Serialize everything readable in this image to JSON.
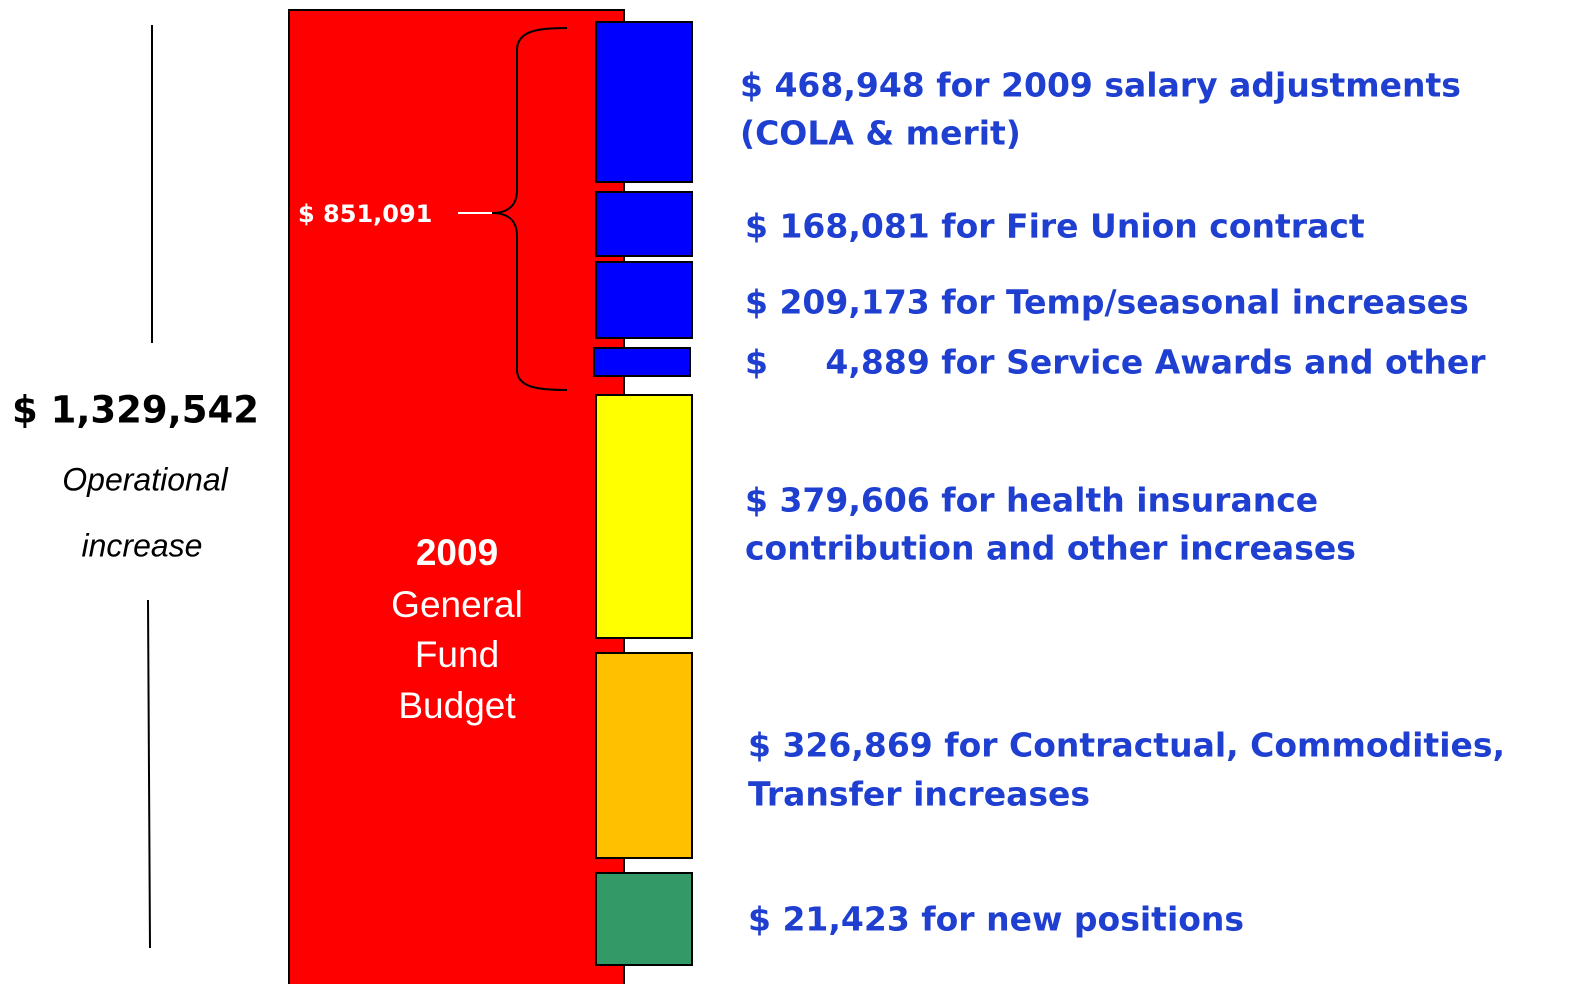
{
  "total": {
    "amount": "$ 1,329,542",
    "caption": [
      "Operational",
      "increase"
    ]
  },
  "budget": {
    "lines": [
      "2009",
      "General",
      "Fund",
      "Budget"
    ]
  },
  "brace_label": "$ 851,091",
  "items": [
    {
      "lines": [
        "$ 468,948 for 2009 salary adjustments",
        "(COLA & merit)"
      ]
    },
    {
      "lines": [
        "$ 168,081 for Fire Union contract"
      ]
    },
    {
      "lines": [
        "$ 209,173 for Temp/seasonal increases"
      ]
    },
    {
      "lines": [
        "$     4,889 for Service Awards and other"
      ]
    },
    {
      "lines": [
        "$ 379,606 for health insurance",
        "contribution and other increases"
      ]
    },
    {
      "lines": [
        "$ 326,869 for Contractual, Commodities,",
        "Transfer increases"
      ]
    },
    {
      "lines": [
        "$ 21,423 for new positions"
      ]
    }
  ]
}
